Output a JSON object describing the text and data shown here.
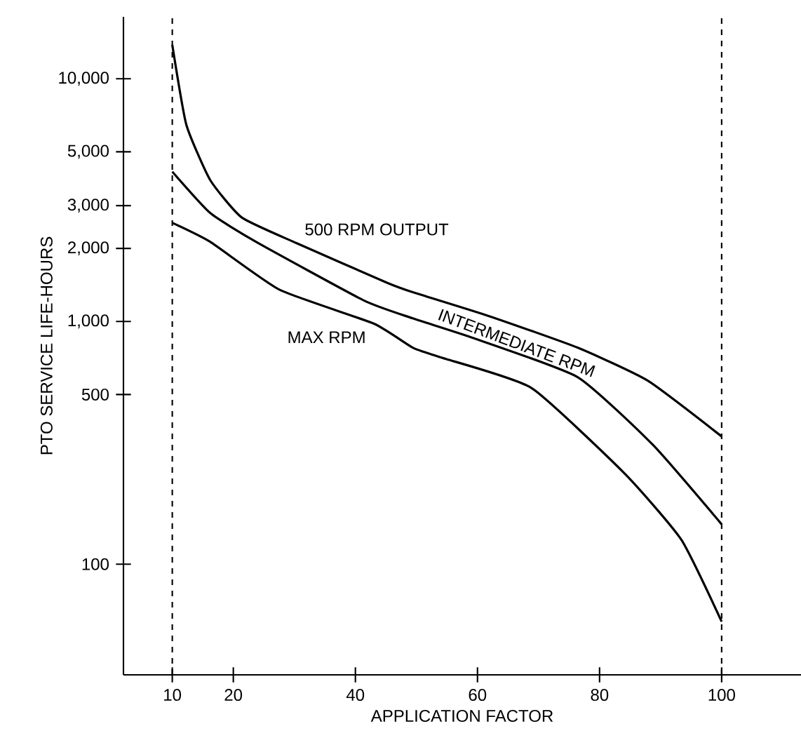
{
  "chart_data": {
    "type": "line",
    "xlabel": "APPLICATION FACTOR",
    "ylabel": "PTO SERVICE LIFE-HOURS",
    "xlim": [
      2,
      113
    ],
    "xticks": [
      10,
      20,
      40,
      60,
      80,
      100
    ],
    "ylim": [
      35,
      18000
    ],
    "yticks": [
      100,
      500,
      {
        "value": 1000,
        "label": "1,000"
      },
      {
        "value": 2000,
        "label": "2,000"
      },
      {
        "value": 3000,
        "label": "3,000"
      },
      {
        "value": 5000,
        "label": "5,000"
      },
      {
        "value": 10000,
        "label": "10,000"
      }
    ],
    "series": [
      {
        "name": "500 RPM OUTPUT",
        "color": "#000000",
        "x": [
          10,
          12.3,
          16.2,
          21.4,
          30.4,
          45.3,
          49.4,
          62,
          76.4,
          87.9,
          100
        ],
        "values": [
          13800,
          6470,
          3830,
          2680,
          2100,
          1440,
          1320,
          1050,
          780,
          570,
          336
        ]
      },
      {
        "name": "INTERMEDIATE RPM",
        "color": "#000000",
        "x": [
          10,
          16.2,
          23.7,
          41.4,
          49.4,
          59,
          76.4,
          88.8,
          100
        ],
        "values": [
          4140,
          2800,
          2130,
          1220,
          1030,
          860,
          590,
          309,
          146
        ]
      },
      {
        "name": "MAX RPM",
        "color": "#000000",
        "x": [
          10,
          16.2,
          27.6,
          43,
          49.4,
          54,
          68.8,
          84.2,
          93.4,
          100
        ],
        "values": [
          2550,
          2130,
          1350,
          980,
          780,
          711,
          533,
          235,
          126,
          58
        ]
      }
    ],
    "ref_lines": [
      {
        "axis": "x",
        "value": 10,
        "line_style": "dashed"
      },
      {
        "axis": "x",
        "value": 100,
        "line_style": "dashed"
      }
    ],
    "log": true,
    "legend": false,
    "grid": false,
    "marker": "none",
    "line_style": "solid"
  }
}
